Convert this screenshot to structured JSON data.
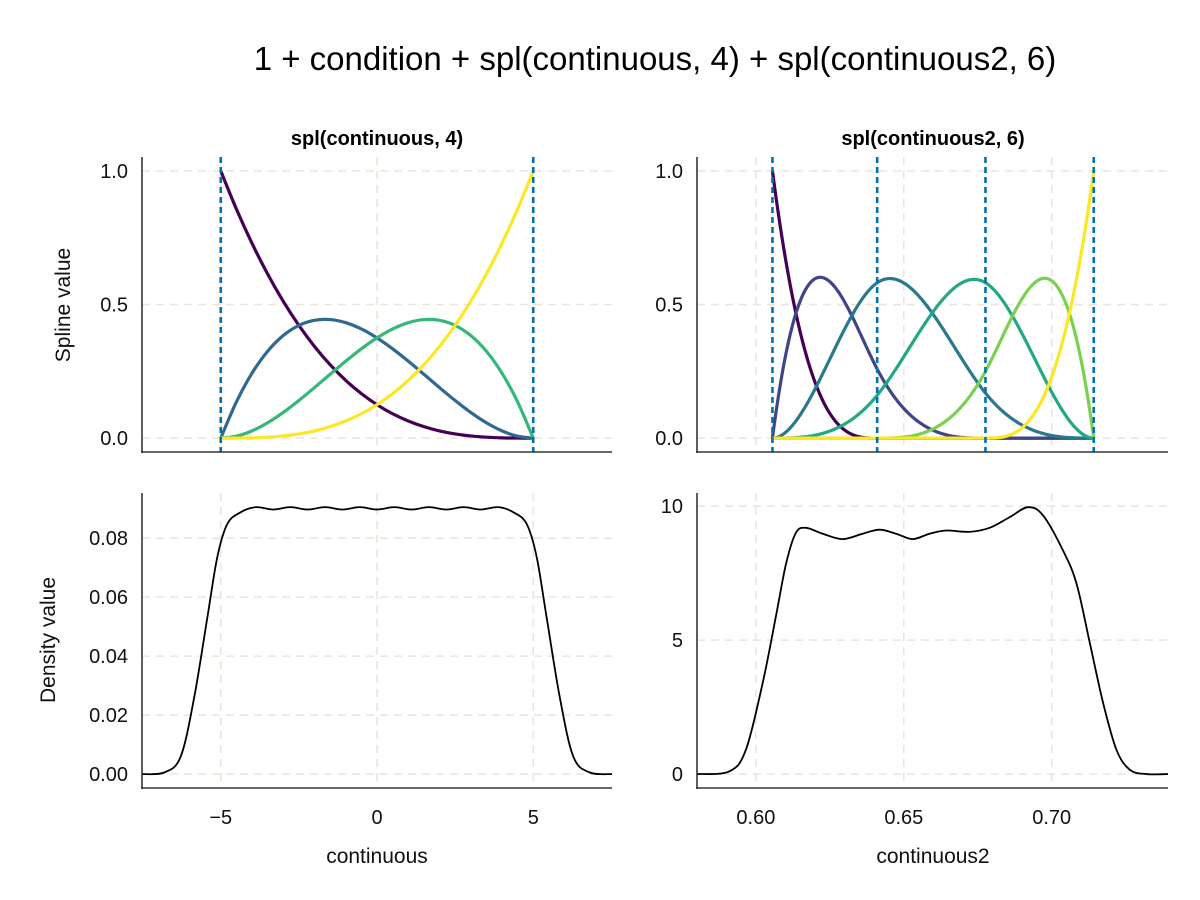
{
  "chart_data": {
    "title": "1 + condition + spl(continuous, 4) + spl(continuous2, 6)",
    "grid": true,
    "colors": {
      "knot_line": "#0072B2",
      "density_line": "#000000",
      "grid": "#EDE3D8",
      "spine": "#3B332C"
    },
    "panels": [
      {
        "id": "spline-continuous",
        "type": "line",
        "subtitle": "spl(continuous, 4)",
        "ylabel": "Spline value",
        "xlabel": "",
        "xlim": [
          -7.52,
          7.52
        ],
        "ylim": [
          -0.052,
          1.052
        ],
        "xticks": [
          -5,
          0,
          5
        ],
        "yticks": [
          0,
          0.5,
          1
        ],
        "ytick_labels": [
          "0.0",
          "0.5",
          "1.0"
        ],
        "show_xtick_labels": false,
        "knots": [
          -5,
          5
        ],
        "degree": 3,
        "x": [
          -5,
          -4.5,
          -4,
          -3.5,
          -3,
          -2.5,
          -2,
          -1.5,
          -1,
          -0.5,
          0,
          0.5,
          1,
          1.5,
          2,
          2.5,
          3,
          3.5,
          4,
          4.5,
          5
        ],
        "series": [
          {
            "color": "#440154",
            "values": [
              1,
              0.857375,
              0.729,
              0.614125,
              0.512,
              0.421875,
              0.343,
              0.274625,
              0.216,
              0.166375,
              0.125,
              0.091125,
              0.064,
              0.042875,
              0.027,
              0.015625,
              0.008,
              0.003375,
              0.001,
              0.000125,
              0
            ]
          },
          {
            "color": "#31688E",
            "values": [
              0,
              0.135375,
              0.243,
              0.325125,
              0.384,
              0.421875,
              0.441,
              0.443625,
              0.432,
              0.408375,
              0.375,
              0.334125,
              0.288,
              0.238875,
              0.189,
              0.140625,
              0.096,
              0.057375,
              0.027,
              0.007125,
              0
            ]
          },
          {
            "color": "#35B779",
            "values": [
              0,
              0.007125,
              0.027,
              0.057375,
              0.096,
              0.140625,
              0.189,
              0.238875,
              0.288,
              0.334125,
              0.375,
              0.408375,
              0.432,
              0.443625,
              0.441,
              0.421875,
              0.384,
              0.325125,
              0.243,
              0.135375,
              0
            ]
          },
          {
            "color": "#FDE725",
            "values": [
              0,
              0.000125,
              0.001,
              0.003375,
              0.008,
              0.015625,
              0.027,
              0.042875,
              0.064,
              0.091125,
              0.125,
              0.166375,
              0.216,
              0.274625,
              0.343,
              0.421875,
              0.512,
              0.614125,
              0.729,
              0.857375,
              1
            ]
          }
        ]
      },
      {
        "id": "spline-continuous2",
        "type": "line",
        "subtitle": "spl(continuous2, 6)",
        "ylabel": "",
        "xlabel": "",
        "xlim": [
          0.5801,
          0.7393
        ],
        "ylim": [
          -0.052,
          1.052
        ],
        "xticks": [
          0.6,
          0.65,
          0.7
        ],
        "yticks": [
          0,
          0.5,
          1
        ],
        "ytick_labels": [
          "0.0",
          "0.5",
          "1.0"
        ],
        "show_xtick_labels": false,
        "knots": [
          0.6056,
          0.641,
          0.6776,
          0.7142
        ],
        "degree": 3,
        "basis": "clamped cubic B-spline over knots",
        "series": [
          {
            "color": "#440154"
          },
          {
            "color": "#414487"
          },
          {
            "color": "#2A788E"
          },
          {
            "color": "#22A884"
          },
          {
            "color": "#7AD151"
          },
          {
            "color": "#FDE725"
          }
        ]
      },
      {
        "id": "density-continuous",
        "type": "line",
        "subtitle": "",
        "ylabel": "Density value",
        "xlabel": "continuous",
        "xlim": [
          -7.52,
          7.52
        ],
        "ylim": [
          -0.0047,
          0.0953
        ],
        "xticks": [
          -5,
          0,
          5
        ],
        "xtick_labels": [
          "−5",
          "0",
          "5"
        ],
        "yticks": [
          0,
          0.02,
          0.04,
          0.06,
          0.08
        ],
        "ytick_labels": [
          "0.00",
          "0.02",
          "0.04",
          "0.06",
          "0.08"
        ],
        "show_xtick_labels": true,
        "series": [
          {
            "color": "#000000",
            "x": [
              -7.52,
              -6.8,
              -6.28,
              -5.85,
              -5.43,
              -5.11,
              -4.79,
              -4.36,
              -3.88,
              -3.33,
              -2.77,
              -2.22,
              -1.66,
              -1.11,
              -0.55,
              0,
              0.55,
              1.11,
              1.66,
              2.22,
              2.77,
              3.33,
              3.88,
              4.36,
              4.79,
              5.11,
              5.43,
              5.85,
              6.28,
              6.8,
              7.52
            ],
            "y": [
              0,
              0.0006,
              0.006,
              0.026,
              0.053,
              0.0736,
              0.0848,
              0.0888,
              0.0905,
              0.0897,
              0.0905,
              0.0897,
              0.0905,
              0.0897,
              0.0905,
              0.0897,
              0.0905,
              0.0897,
              0.0905,
              0.0897,
              0.0905,
              0.0897,
              0.0905,
              0.0888,
              0.0848,
              0.0736,
              0.053,
              0.026,
              0.006,
              0.0006,
              0
            ]
          }
        ]
      },
      {
        "id": "density-continuous2",
        "type": "line",
        "subtitle": "",
        "ylabel": "",
        "xlabel": "continuous2",
        "xlim": [
          0.5801,
          0.7393
        ],
        "ylim": [
          -0.52,
          10.49
        ],
        "xticks": [
          0.6,
          0.65,
          0.7
        ],
        "xtick_labels": [
          "0.60",
          "0.65",
          "0.70"
        ],
        "yticks": [
          0,
          5,
          10
        ],
        "ytick_labels": [
          "0",
          "5",
          "10"
        ],
        "show_xtick_labels": true,
        "series": [
          {
            "color": "#000000",
            "x": [
              0.5801,
              0.591,
              0.5966,
              0.6023,
              0.6068,
              0.6102,
              0.6135,
              0.6169,
              0.6226,
              0.6293,
              0.6361,
              0.6418,
              0.6474,
              0.653,
              0.6587,
              0.6643,
              0.6722,
              0.679,
              0.6858,
              0.692,
              0.6971,
              0.7038,
              0.7084,
              0.7129,
              0.7174,
              0.7219,
              0.7264,
              0.732,
              0.7393
            ],
            "y": [
              0,
              0.1,
              0.9,
              3.4,
              5.9,
              7.85,
              9.0,
              9.19,
              8.97,
              8.77,
              8.97,
              9.12,
              8.97,
              8.77,
              8.97,
              9.09,
              9.04,
              9.19,
              9.59,
              9.96,
              9.65,
              8.35,
              7.1,
              4.88,
              2.64,
              0.9,
              0.16,
              0,
              0
            ]
          }
        ]
      }
    ]
  }
}
